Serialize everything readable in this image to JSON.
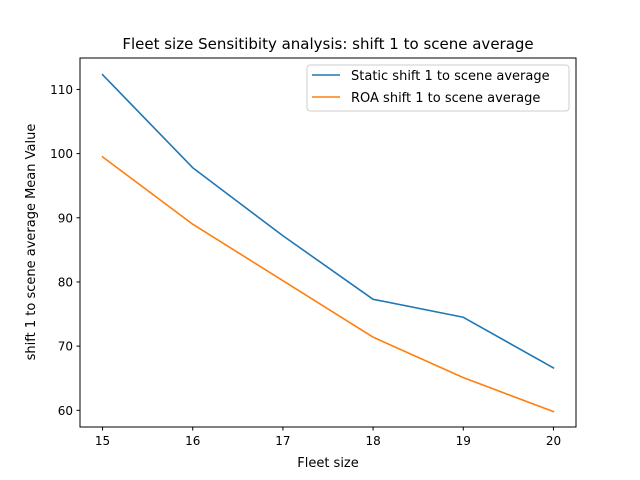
{
  "chart_data": {
    "type": "line",
    "title": "Fleet size Sensitibity analysis: shift 1 to scene average",
    "xlabel": "Fleet size",
    "ylabel": "shift 1 to scene average Mean Value",
    "x": [
      15,
      16,
      17,
      18,
      19,
      20
    ],
    "xlim": [
      14.75,
      20.25
    ],
    "ylim": [
      57.4,
      114.9
    ],
    "xticks": [
      15,
      16,
      17,
      18,
      19,
      20
    ],
    "yticks": [
      60,
      70,
      80,
      90,
      100,
      110
    ],
    "grid": false,
    "legend_position": "top-right",
    "series": [
      {
        "name": "Static shift 1 to scene average",
        "color": "#1f77b4",
        "values": [
          112.3,
          97.8,
          87.2,
          77.3,
          74.5,
          66.6
        ]
      },
      {
        "name": "ROA shift 1 to scene average",
        "color": "#ff7f0e",
        "values": [
          99.5,
          89.0,
          80.2,
          71.4,
          65.1,
          59.8
        ]
      }
    ]
  }
}
